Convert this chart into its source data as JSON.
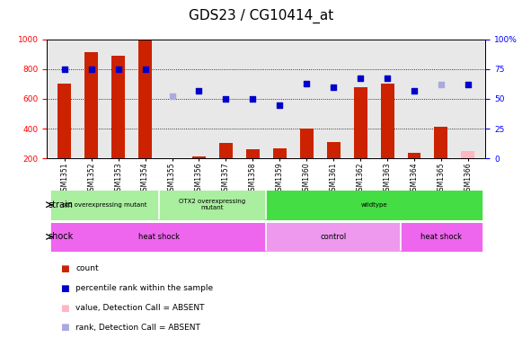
{
  "title": "GDS23 / CG10414_at",
  "samples": [
    "GSM1351",
    "GSM1352",
    "GSM1353",
    "GSM1354",
    "GSM1355",
    "GSM1356",
    "GSM1357",
    "GSM1358",
    "GSM1359",
    "GSM1360",
    "GSM1361",
    "GSM1362",
    "GSM1363",
    "GSM1364",
    "GSM1365",
    "GSM1366"
  ],
  "bar_values": [
    700,
    910,
    890,
    990,
    0,
    215,
    305,
    260,
    270,
    400,
    310,
    680,
    700,
    240,
    415,
    0
  ],
  "bar_absent": [
    false,
    false,
    false,
    false,
    true,
    false,
    false,
    false,
    false,
    false,
    false,
    false,
    false,
    false,
    false,
    true
  ],
  "bar_absent_values": [
    0,
    0,
    0,
    0,
    170,
    0,
    0,
    0,
    0,
    0,
    0,
    0,
    0,
    0,
    0,
    250
  ],
  "dot_values": [
    75,
    75,
    75,
    75,
    null,
    57,
    50,
    50,
    45,
    63,
    60,
    67,
    67,
    57,
    null,
    62
  ],
  "dot_absent": [
    false,
    false,
    false,
    false,
    true,
    false,
    false,
    false,
    false,
    false,
    false,
    false,
    false,
    false,
    true,
    false
  ],
  "dot_absent_values": [
    null,
    null,
    null,
    null,
    52,
    null,
    null,
    null,
    null,
    null,
    null,
    null,
    null,
    null,
    62,
    null
  ],
  "strain_groups": [
    {
      "label": "otd overexpressing mutant",
      "start": 0,
      "end": 4,
      "color": "#AAEEA0"
    },
    {
      "label": "OTX2 overexpressing\nmutant",
      "start": 4,
      "end": 8,
      "color": "#AAEEA0"
    },
    {
      "label": "wildtype",
      "start": 8,
      "end": 16,
      "color": "#44DD44"
    }
  ],
  "shock_groups": [
    {
      "label": "heat shock",
      "start": 0,
      "end": 8,
      "color": "#EE66EE"
    },
    {
      "label": "control",
      "start": 8,
      "end": 13,
      "color": "#EE99EE"
    },
    {
      "label": "heat shock",
      "start": 13,
      "end": 16,
      "color": "#EE66EE"
    }
  ],
  "bar_color": "#CC2200",
  "bar_absent_color": "#FFB6C1",
  "dot_color": "#0000CC",
  "dot_absent_color": "#AAAADD",
  "ylim_left": [
    200,
    1000
  ],
  "ylim_right": [
    0,
    100
  ],
  "yticks_left": [
    200,
    400,
    600,
    800,
    1000
  ],
  "yticks_right": [
    0,
    25,
    50,
    75,
    100
  ],
  "grid_values": [
    400,
    600,
    800
  ],
  "bg_color": "#E8E8E8",
  "title_fontsize": 11,
  "tick_fontsize": 6.5
}
